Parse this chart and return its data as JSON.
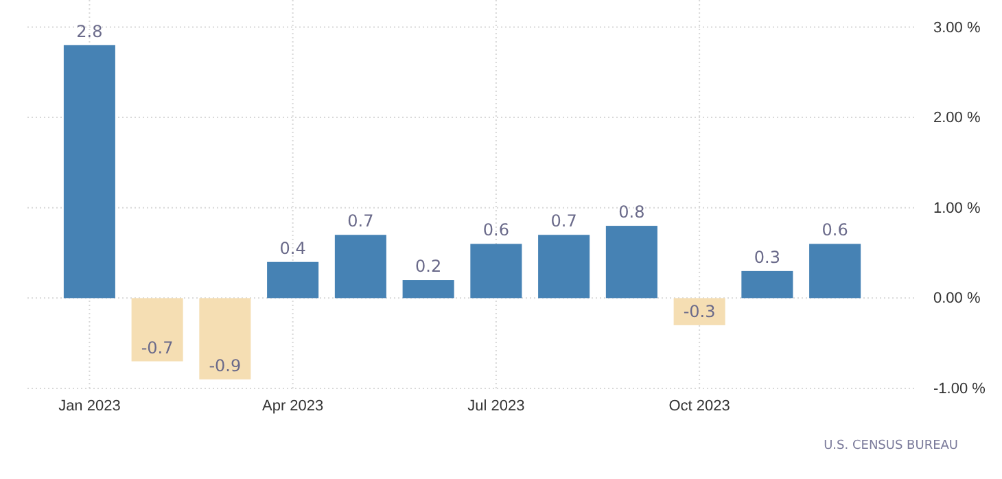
{
  "chart_data": {
    "type": "bar",
    "categories": [
      "Jan 2023",
      null,
      null,
      "Apr 2023",
      null,
      null,
      "Jul 2023",
      null,
      null,
      "Oct 2023",
      null,
      null
    ],
    "values": [
      2.8,
      -0.7,
      -0.9,
      0.4,
      0.7,
      0.2,
      0.6,
      0.7,
      0.8,
      -0.3,
      0.3,
      0.6
    ],
    "colors": [
      "#4682b4",
      "#f5deb3",
      "#f5deb3",
      "#4682b4",
      "#4682b4",
      "#4682b4",
      "#4682b4",
      "#4682b4",
      "#4682b4",
      "#f5deb3",
      "#4682b4",
      "#4682b4"
    ],
    "ylim": [
      -1,
      3.3
    ],
    "yticks": [
      {
        "value": -1,
        "label": "-1.00 %"
      },
      {
        "value": 0,
        "label": "0.00 %"
      },
      {
        "value": 1,
        "label": "1.00 %"
      },
      {
        "value": 2,
        "label": "2.00 %"
      },
      {
        "value": 3,
        "label": "3.00 %"
      }
    ],
    "grid": true,
    "data_labels": true,
    "annotations": [
      "U.S. CENSUS BUREAU"
    ]
  }
}
